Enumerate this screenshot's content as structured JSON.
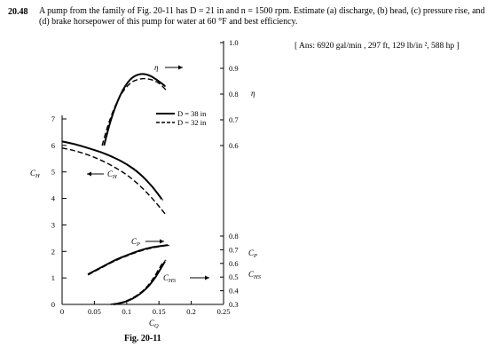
{
  "problem": {
    "number": "20.48",
    "text": "A pump from the family of Fig. 20-11 has D = 21 in and n = 1500 rpm. Estimate (a) discharge, (b) head, (c) pressure rise, and (d) brake horsepower of this pump for water at 60 °F and best efficiency.",
    "answer": "[ Ans: 6920 gal/min , 297 ft, 129 lb/in ², 588 hp ]"
  },
  "figure": {
    "caption": "Fig. 20-11",
    "legend": [
      {
        "label": "D = 38 in",
        "style": "solid"
      },
      {
        "label": "D = 32 in",
        "style": "dashed"
      }
    ],
    "curve_labels": {
      "eta": "η",
      "ch": "CH",
      "cp": "CP",
      "chs": "CHS"
    }
  },
  "chart_data": {
    "type": "line",
    "title": "",
    "xlabel": "CQ",
    "x_ticks": [
      "0",
      "0.05",
      "0.1",
      "0.15",
      "0.2",
      "0.25"
    ],
    "xlim": [
      0,
      0.25
    ],
    "left_axis": {
      "label": "CH",
      "ticks": [
        "0",
        "1",
        "2",
        "3",
        "4",
        "5",
        "6",
        "7"
      ],
      "range": [
        0,
        7.3
      ]
    },
    "right_axis_top": {
      "label": "η",
      "ticks": [
        "1.0",
        "0.9",
        "0.8",
        "0.7",
        "0.6"
      ]
    },
    "right_axis_bottom": {
      "labels": [
        "CP",
        "CHS"
      ],
      "ticks": [
        "0.8",
        "0.7",
        "0.6",
        "0.5",
        "0.4",
        "0.3"
      ]
    },
    "series": [
      {
        "name": "η",
        "style": "solid",
        "x": [
          0.065,
          0.075,
          0.09,
          0.105,
          0.12,
          0.135,
          0.15,
          0.16
        ],
        "y": [
          0.6,
          0.7,
          0.8,
          0.86,
          0.88,
          0.875,
          0.85,
          0.83
        ]
      },
      {
        "name": "η",
        "style": "dashed",
        "x": [
          0.062,
          0.072,
          0.088,
          0.105,
          0.12,
          0.135,
          0.15,
          0.163
        ],
        "y": [
          0.6,
          0.69,
          0.79,
          0.845,
          0.86,
          0.86,
          0.845,
          0.81
        ]
      },
      {
        "name": "CH",
        "style": "solid",
        "x": [
          0,
          0.02,
          0.04,
          0.06,
          0.08,
          0.1,
          0.12,
          0.14,
          0.155
        ],
        "y": [
          6.15,
          6.05,
          5.9,
          5.75,
          5.55,
          5.3,
          4.95,
          4.45,
          3.95
        ]
      },
      {
        "name": "CH",
        "style": "dashed",
        "x": [
          0,
          0.02,
          0.04,
          0.06,
          0.08,
          0.1,
          0.12,
          0.14,
          0.16
        ],
        "y": [
          5.9,
          5.8,
          5.65,
          5.45,
          5.2,
          4.9,
          4.5,
          4.0,
          3.4
        ]
      },
      {
        "name": "CP",
        "style": "solid",
        "x": [
          0.04,
          0.06,
          0.08,
          0.1,
          0.12,
          0.14,
          0.165
        ],
        "y": [
          0.52,
          0.57,
          0.62,
          0.66,
          0.695,
          0.72,
          0.735
        ]
      },
      {
        "name": "CP",
        "style": "dashed",
        "x": [
          0.04,
          0.06,
          0.08,
          0.1,
          0.12,
          0.14,
          0.16
        ],
        "y": [
          0.515,
          0.565,
          0.615,
          0.655,
          0.69,
          0.715,
          0.73
        ]
      },
      {
        "name": "CHS",
        "style": "solid",
        "x": [
          0.08,
          0.1,
          0.12,
          0.14,
          0.16
        ],
        "y": [
          0.3,
          0.32,
          0.37,
          0.46,
          0.62
        ]
      },
      {
        "name": "CHS",
        "style": "dashed",
        "x": [
          0.075,
          0.095,
          0.115,
          0.135,
          0.155
        ],
        "y": [
          0.3,
          0.315,
          0.36,
          0.44,
          0.6
        ]
      }
    ]
  }
}
